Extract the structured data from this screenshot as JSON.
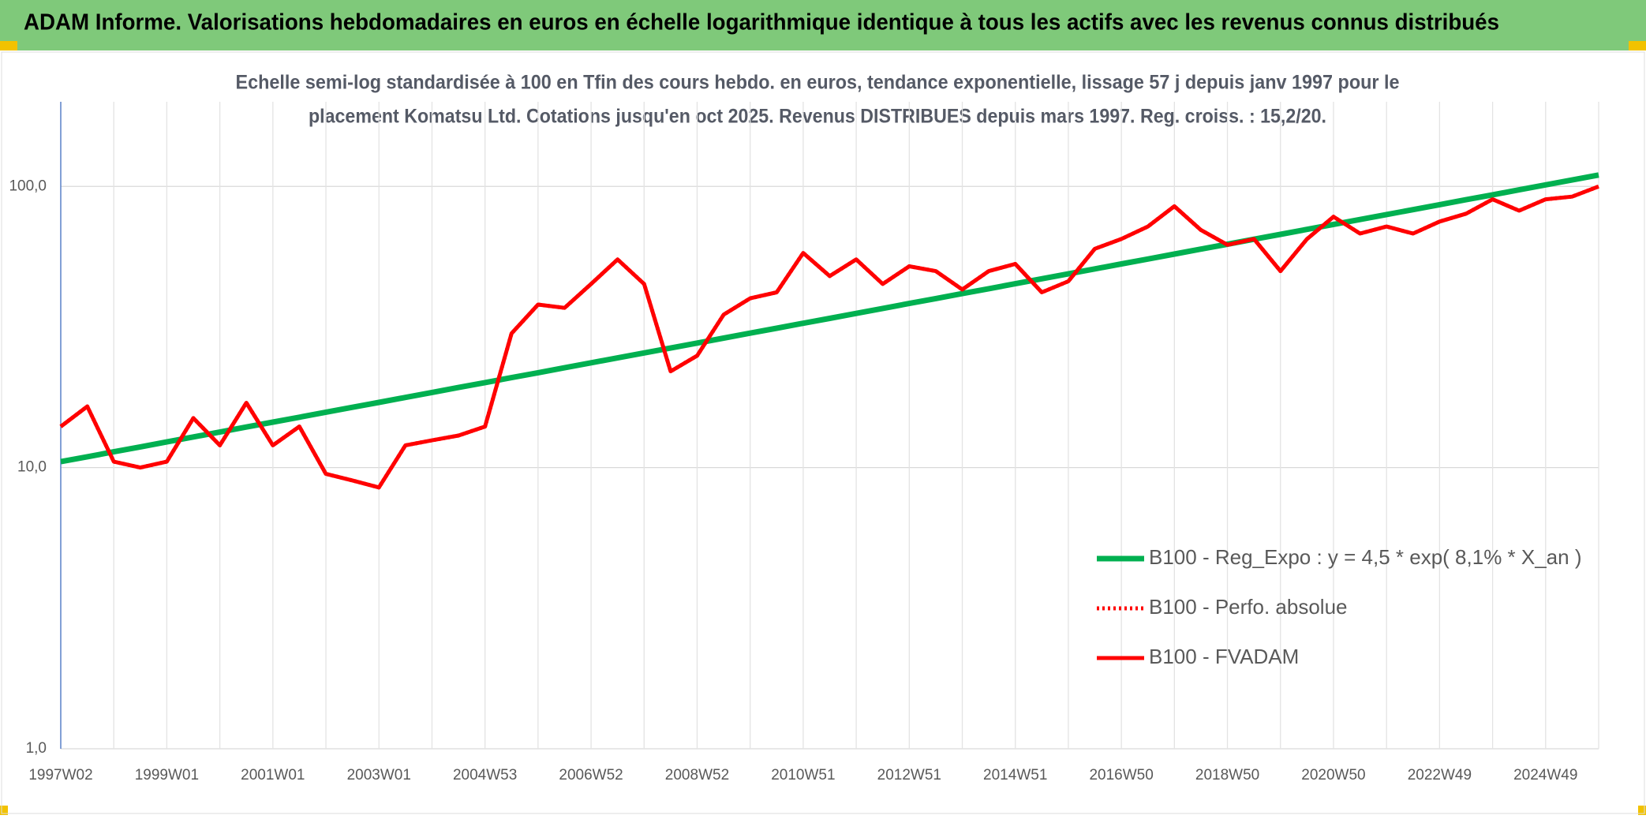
{
  "chart_data": {
    "type": "line",
    "header": "ADAM Informe. Valorisations hebdomadaires en euros en échelle logarithmique identique à tous les actifs avec les revenus connus distribués",
    "subtitle": [
      "Echelle semi-log standardisée à 100 en Tfin des cours hebdo. en euros, tendance exponentielle, lissage 57 j depuis janv 1997 pour le",
      "placement Komatsu Ltd. Cotations jusqu'en oct 2025. Revenus DISTRIBUES depuis mars 1997. Reg. croiss. : 15,2/20."
    ],
    "categories": [
      "1997W02",
      null,
      null,
      null,
      "1999W01",
      null,
      null,
      null,
      "2001W01",
      null,
      null,
      null,
      "2003W01",
      null,
      null,
      null,
      "2004W53",
      null,
      null,
      null,
      "2006W52",
      null,
      null,
      null,
      "2008W52",
      null,
      null,
      null,
      "2010W51",
      null,
      null,
      null,
      "2012W51",
      null,
      null,
      null,
      "2014W51",
      null,
      null,
      null,
      "2016W50",
      null,
      null,
      null,
      "2018W50",
      null,
      null,
      null,
      "2020W50",
      null,
      null,
      null,
      "2022W49",
      null,
      null,
      null,
      "2024W49",
      null,
      null
    ],
    "series": [
      {
        "name": "B100 - Reg_Expo : y = 4,5 * exp( 8,1% *  X_an )",
        "color": "#00b050",
        "style": "solid",
        "values": [
          10.5,
          10.93,
          11.38,
          11.85,
          12.34,
          12.85,
          13.38,
          13.94,
          14.51,
          15.11,
          15.74,
          16.39,
          17.06,
          17.77,
          18.5,
          19.27,
          20.06,
          20.89,
          21.75,
          22.65,
          23.59,
          24.56,
          25.58,
          26.63,
          27.73,
          28.88,
          30.07,
          31.31,
          32.61,
          33.95,
          35.36,
          36.82,
          38.34,
          39.92,
          41.57,
          43.29,
          45.08,
          46.94,
          48.88,
          50.9,
          53.0,
          55.19,
          57.47,
          59.84,
          62.31,
          64.88,
          67.56,
          70.35,
          73.26,
          76.28,
          79.43,
          82.71,
          86.13,
          89.69,
          93.39,
          97.25,
          101.27,
          105.45,
          109.8
        ]
      },
      {
        "name": "B100 - Perfo. absolue",
        "color": "#ff0000",
        "style": "dotted",
        "values": [
          14,
          16.5,
          10.5,
          10,
          10.5,
          15,
          12,
          17,
          12,
          14,
          9.5,
          9,
          8.5,
          12,
          12.5,
          13,
          14,
          30,
          38,
          37,
          45,
          55,
          45,
          22,
          25,
          35,
          40,
          42,
          58,
          48,
          55,
          45,
          52,
          50,
          43,
          50,
          53,
          42,
          46,
          60,
          65,
          72,
          85,
          70,
          62,
          65,
          50,
          65,
          78,
          68,
          72,
          68,
          75,
          80,
          90,
          82,
          90,
          92,
          100
        ]
      },
      {
        "name": "B100 - FVADAM",
        "color": "#ff0000",
        "style": "solid",
        "values": [
          14,
          16.5,
          10.5,
          10,
          10.5,
          15,
          12,
          17,
          12,
          14,
          9.5,
          9,
          8.5,
          12,
          12.5,
          13,
          14,
          30,
          38,
          37,
          45,
          55,
          45,
          22,
          25,
          35,
          40,
          42,
          58,
          48,
          55,
          45,
          52,
          50,
          43,
          50,
          53,
          42,
          46,
          60,
          65,
          72,
          85,
          70,
          62,
          65,
          50,
          65,
          78,
          68,
          72,
          68,
          75,
          80,
          90,
          82,
          90,
          92,
          100
        ]
      }
    ],
    "ylim": [
      1,
      200
    ],
    "yticks": [
      {
        "value": 1,
        "label": "1,0"
      },
      {
        "value": 10,
        "label": "10,0"
      },
      {
        "value": 100,
        "label": "100,0"
      }
    ],
    "log_y": true,
    "grid": true,
    "legend": "lower right"
  }
}
